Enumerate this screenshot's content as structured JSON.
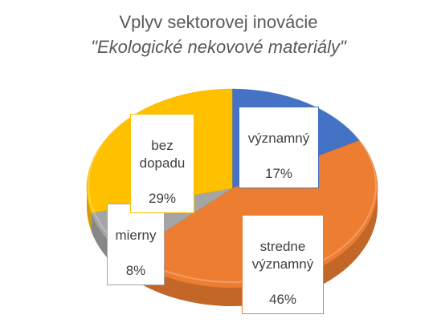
{
  "chart_data": {
    "type": "pie",
    "title": "Vplyv sektorovej inovácie",
    "subtitle": "\"Ekologické nekovové materiály\"",
    "slices": [
      {
        "label": "významný",
        "value": 17,
        "display": "17%",
        "color": "#4472C4"
      },
      {
        "label": "stredne významný",
        "value": 46,
        "display": "46%",
        "color": "#ED7D31"
      },
      {
        "label": "mierny",
        "value": 8,
        "display": "8%",
        "color": "#A5A5A5"
      },
      {
        "label": "bez dopadu",
        "value": 29,
        "display": "29%",
        "color": "#FFC000"
      }
    ],
    "legend": "none",
    "style": "3d"
  }
}
